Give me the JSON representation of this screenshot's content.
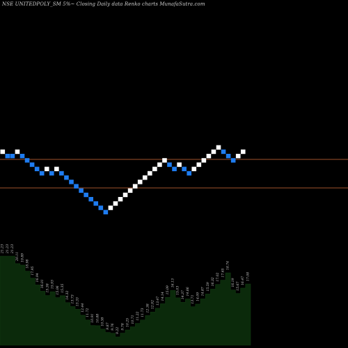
{
  "title": "NSE UNITEDPOLY_SM 5%~  Closing Daily data  Renko  charts MunafaSutra.com",
  "colors": {
    "background": "#000000",
    "up_brick": "#ffffff",
    "down_brick": "#1e7cf0",
    "level_line": "#a0522d",
    "area_fill": "#0b2a0b",
    "area_stroke": "#000000",
    "label": "#cfcfcf"
  },
  "chart_data": {
    "type": "renko",
    "brick_percent": 5,
    "bricks": [
      {
        "level": 0,
        "dir": "up"
      },
      {
        "level": 1,
        "dir": "down"
      },
      {
        "level": 1,
        "dir": "down"
      },
      {
        "level": 0,
        "dir": "up"
      },
      {
        "level": 1,
        "dir": "down"
      },
      {
        "level": 2,
        "dir": "down"
      },
      {
        "level": 3,
        "dir": "down"
      },
      {
        "level": 4,
        "dir": "down"
      },
      {
        "level": 5,
        "dir": "down"
      },
      {
        "level": 4,
        "dir": "up"
      },
      {
        "level": 5,
        "dir": "down"
      },
      {
        "level": 4,
        "dir": "up"
      },
      {
        "level": 5,
        "dir": "down"
      },
      {
        "level": 6,
        "dir": "down"
      },
      {
        "level": 7,
        "dir": "down"
      },
      {
        "level": 8,
        "dir": "down"
      },
      {
        "level": 9,
        "dir": "down"
      },
      {
        "level": 10,
        "dir": "down"
      },
      {
        "level": 11,
        "dir": "down"
      },
      {
        "level": 12,
        "dir": "down"
      },
      {
        "level": 13,
        "dir": "down"
      },
      {
        "level": 14,
        "dir": "down"
      },
      {
        "level": 13,
        "dir": "up"
      },
      {
        "level": 12,
        "dir": "up"
      },
      {
        "level": 11,
        "dir": "up"
      },
      {
        "level": 10,
        "dir": "up"
      },
      {
        "level": 9,
        "dir": "up"
      },
      {
        "level": 8,
        "dir": "up"
      },
      {
        "level": 7,
        "dir": "up"
      },
      {
        "level": 6,
        "dir": "up"
      },
      {
        "level": 5,
        "dir": "up"
      },
      {
        "level": 4,
        "dir": "up"
      },
      {
        "level": 3,
        "dir": "up"
      },
      {
        "level": 2,
        "dir": "up"
      },
      {
        "level": 3,
        "dir": "down"
      },
      {
        "level": 4,
        "dir": "down"
      },
      {
        "level": 3,
        "dir": "up"
      },
      {
        "level": 4,
        "dir": "down"
      },
      {
        "level": 5,
        "dir": "down"
      },
      {
        "level": 4,
        "dir": "up"
      },
      {
        "level": 3,
        "dir": "up"
      },
      {
        "level": 2,
        "dir": "up"
      },
      {
        "level": 1,
        "dir": "up"
      },
      {
        "level": 0,
        "dir": "up"
      },
      {
        "level": -1,
        "dir": "up"
      },
      {
        "level": 0,
        "dir": "down"
      },
      {
        "level": 1,
        "dir": "down"
      },
      {
        "level": 2,
        "dir": "down"
      },
      {
        "level": 1,
        "dir": "up"
      },
      {
        "level": 0,
        "dir": "up"
      }
    ],
    "level_lines": [
      "upper",
      "lower"
    ],
    "closing_values": [
      21.23,
      21.23,
      21.23,
      20.11,
      19.89,
      18.98,
      17.95,
      16.94,
      16.01,
      15.38,
      15.93,
      15.06,
      15.35,
      14.32,
      13.73,
      13.33,
      12.44,
      11.72,
      10.91,
      10.88,
      10.38,
      9.87,
      9.76,
      9.22,
      9.78,
      10.25,
      10.71,
      11.22,
      11.73,
      12.38,
      12.92,
      13.47,
      14.14,
      15.09,
      16.13,
      15.03,
      14.37,
      14.86,
      13.71,
      14.09,
      14.87,
      15.59,
      16.32,
      17.02,
      17.65,
      18.74,
      16.19,
      15.67,
      16.47,
      17.08
    ]
  }
}
